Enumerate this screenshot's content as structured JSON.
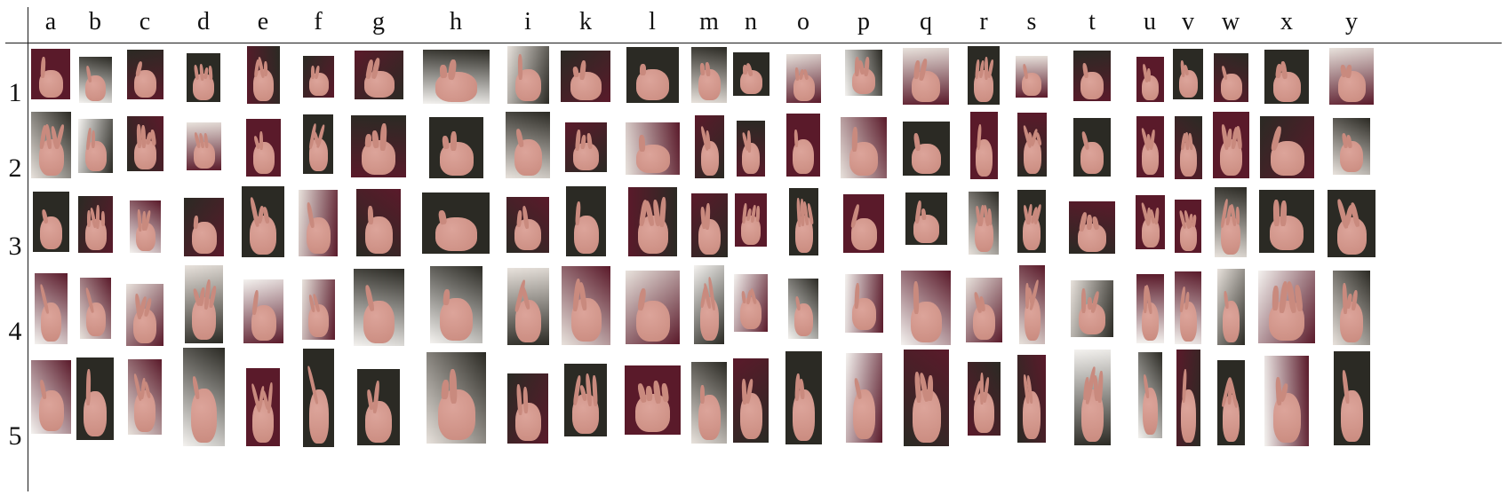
{
  "figure": {
    "columns": [
      "a",
      "b",
      "c",
      "d",
      "e",
      "f",
      "g",
      "h",
      "i",
      "k",
      "l",
      "m",
      "n",
      "o",
      "p",
      "q",
      "r",
      "s",
      "t",
      "u",
      "v",
      "w",
      "x",
      "y"
    ],
    "rows": [
      "1",
      "2",
      "3",
      "4",
      "5"
    ]
  },
  "palette": {
    "line": "#1a1a1a",
    "text": "#111111",
    "skin": "#c98a7e",
    "skin_light": "#dca49a",
    "bg_dark": "#2b2a24",
    "bg_maroon": "#5a1a2a",
    "bg_light": "#e8e2dc",
    "bg_white": "#f4f2ef"
  }
}
